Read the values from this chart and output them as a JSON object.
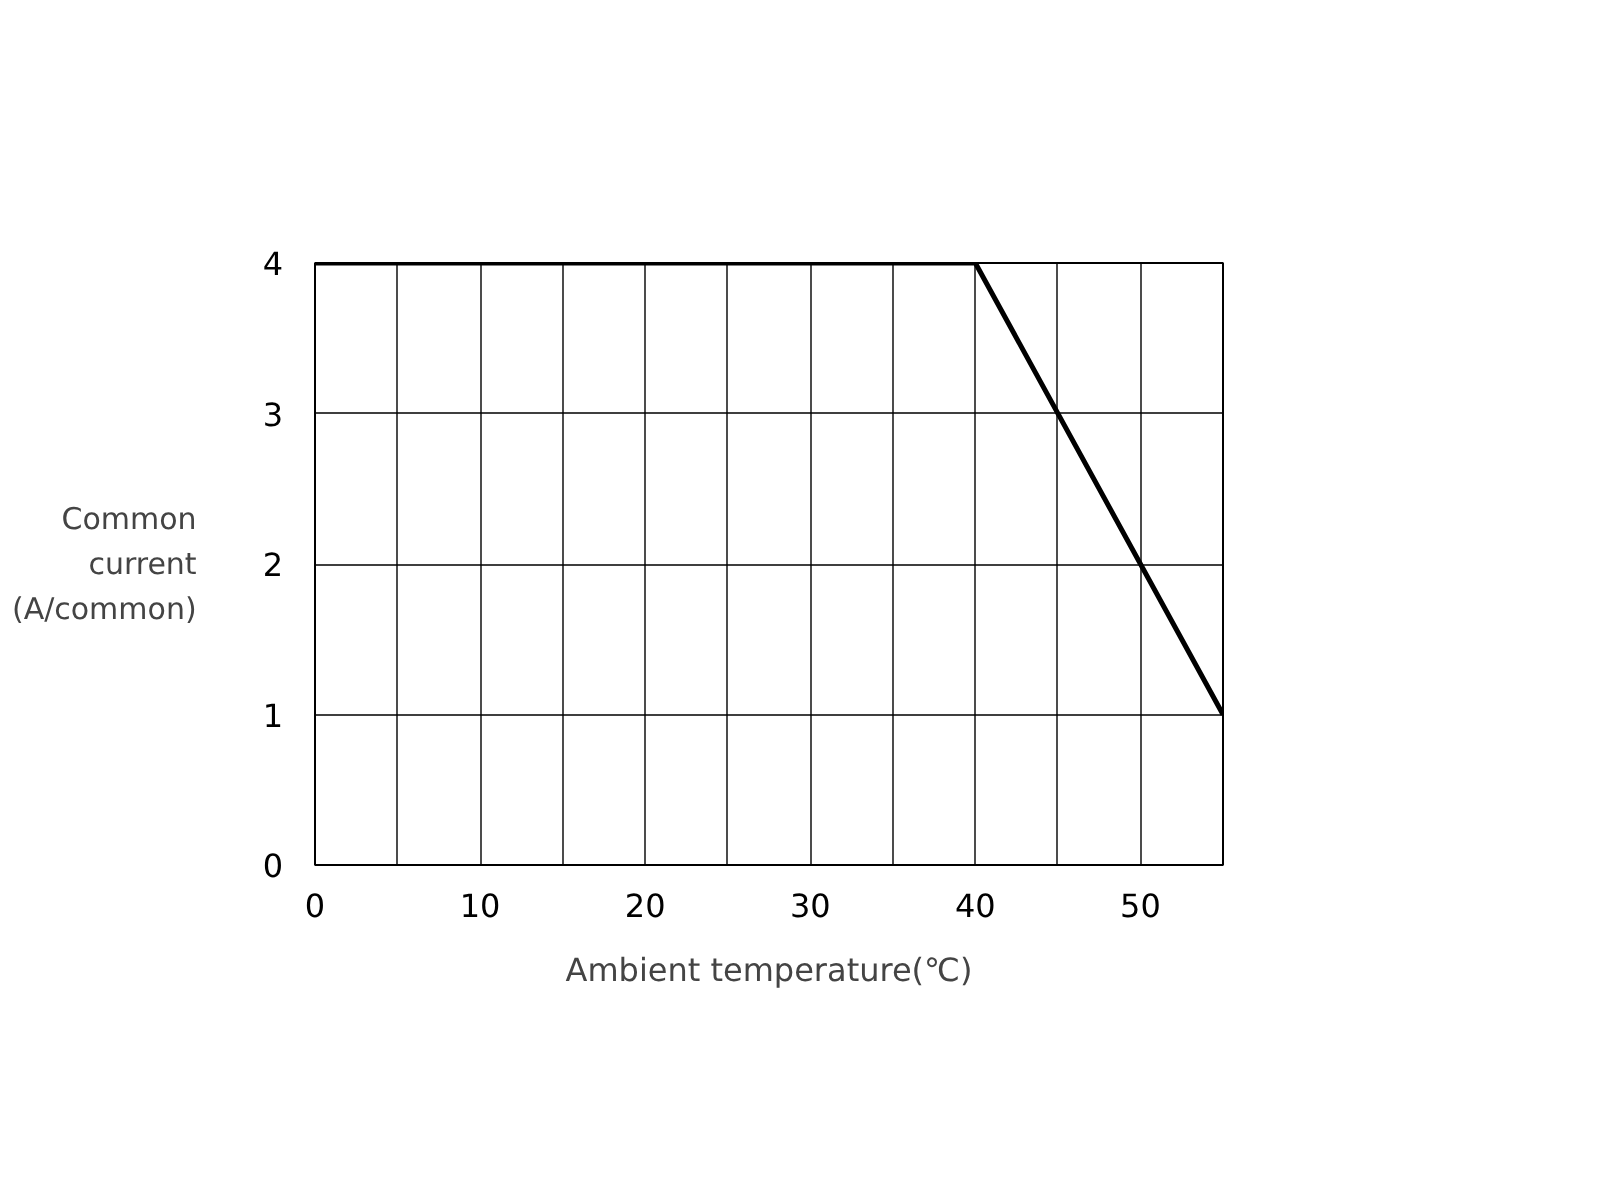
{
  "chart_data": {
    "type": "line",
    "xlabel": "Ambient temperature(℃)",
    "ylabel": "Common current (A/common)",
    "x": [
      0,
      40,
      55
    ],
    "series": [
      {
        "color": "#000000",
        "values": [
          4,
          4,
          1
        ]
      }
    ],
    "xlim": [
      0,
      55
    ],
    "ylim": [
      0,
      4
    ],
    "xticks": [
      0,
      {
        "value": 5,
        "label": null
      },
      10,
      {
        "value": 15,
        "label": null
      },
      20,
      {
        "value": 25,
        "label": null
      },
      30,
      {
        "value": 35,
        "label": null
      },
      40,
      {
        "value": 45,
        "label": null
      },
      50
    ],
    "yticks": [
      0,
      1,
      2,
      3,
      4
    ],
    "grid": true,
    "marker": "none",
    "line_style": "solid"
  }
}
